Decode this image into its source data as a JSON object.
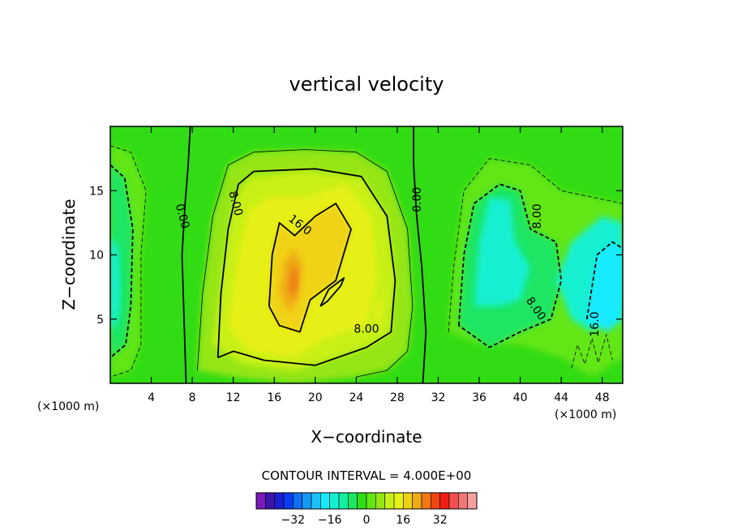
{
  "chart_data": {
    "type": "contour",
    "title": "vertical velocity",
    "xlabel": "X−coordinate",
    "ylabel": "Z−coordinate",
    "x_unit_label": "(×1000 m)",
    "x_unit_label_right": "(×1000 m)",
    "xlim": [
      0,
      50
    ],
    "ylim": [
      0,
      20
    ],
    "x_ticks": [
      4,
      8,
      12,
      16,
      20,
      24,
      28,
      32,
      36,
      40,
      44,
      48
    ],
    "x_tick_labels": [
      "4",
      "8",
      "12",
      "16",
      "20",
      "24",
      "28",
      "32",
      "36",
      "40",
      "44",
      "48"
    ],
    "y_ticks": [
      5,
      10,
      15
    ],
    "y_tick_labels": [
      "5",
      "10",
      "15"
    ],
    "contour_interval_text": "CONTOUR INTERVAL = 4.000E+00",
    "contour_interval": 4,
    "negative_contours": "dashed",
    "contour_labels": [
      {
        "text": "0.00",
        "x": 7.0,
        "y": 13.0,
        "angle": -75
      },
      {
        "text": "8.00",
        "x": 12.2,
        "y": 14.0,
        "angle": -75
      },
      {
        "text": "16.0",
        "x": 18.5,
        "y": 12.3,
        "angle": -38
      },
      {
        "text": "8.00",
        "x": 25.0,
        "y": 4.2,
        "angle": 0
      },
      {
        "text": "0.00",
        "x": 30.0,
        "y": 14.3,
        "angle": 90
      },
      {
        "text": "8.00",
        "x": 41.7,
        "y": 13.0,
        "angle": 90
      },
      {
        "text": "8.00",
        "x": 41.5,
        "y": 5.8,
        "angle": -55
      },
      {
        "text": "16.0",
        "x": 47.3,
        "y": 4.6,
        "angle": 90
      }
    ],
    "colorbar": {
      "colors": [
        "#7a1ab8",
        "#3c14a8",
        "#1a1ed2",
        "#0a3cf0",
        "#0f6ef0",
        "#1499f5",
        "#1ec0fa",
        "#14ebff",
        "#14f0d2",
        "#14f0a0",
        "#1ee664",
        "#32dc14",
        "#64e614",
        "#96e614",
        "#c8f014",
        "#e6f014",
        "#f0d214",
        "#f0aa14",
        "#f07814",
        "#f04614",
        "#f01e14",
        "#f05050",
        "#f07878",
        "#f5a0a0"
      ],
      "tick_labels": [
        "−32",
        "−16",
        "0",
        "16",
        "32"
      ],
      "tick_values": [
        -32,
        -16,
        0,
        16,
        32
      ],
      "range": [
        -48,
        48
      ]
    },
    "notes_fields": {
      "updraft_core": {
        "x": 18,
        "y": 8.5,
        "peak_level": 24
      },
      "downdraft_left": {
        "x": 0.5,
        "y": 7,
        "min_level": -16
      },
      "downdraft_right": {
        "x": 48,
        "y": 8,
        "min_level": -20
      }
    }
  }
}
